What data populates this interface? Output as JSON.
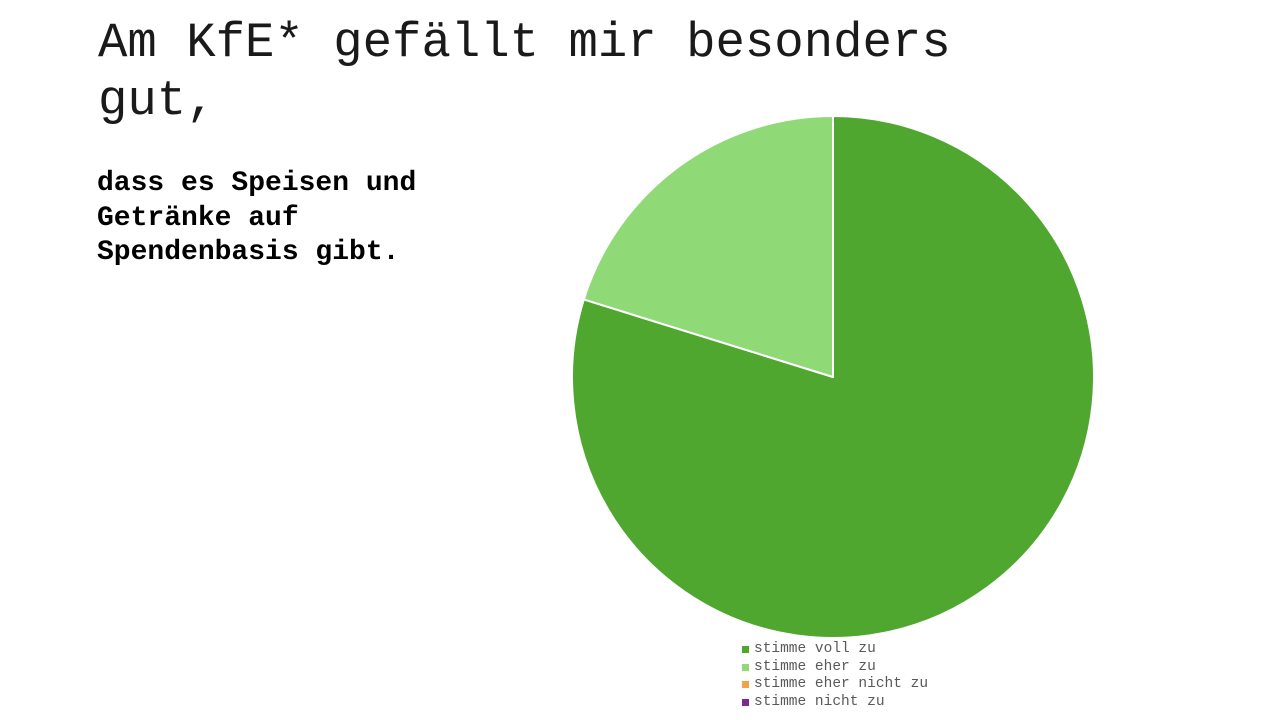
{
  "slide": {
    "title": "Am KfE* gefällt mir besonders gut,",
    "subtitle": "dass es Speisen und Getränke auf Spendenbasis gibt."
  },
  "chart_data": {
    "type": "pie",
    "start_angle_deg": 0,
    "direction": "clockwise",
    "legend_position": "bottom",
    "slices": [
      {
        "label": "stimme voll zu",
        "value": 79.8,
        "color": "#4fa72f"
      },
      {
        "label": "stimme eher zu",
        "value": 20.2,
        "color": "#8fd976"
      },
      {
        "label": "stimme eher nicht zu",
        "value": 0,
        "color": "#f2a34a"
      },
      {
        "label": "stimme nicht zu",
        "value": 0,
        "color": "#7b2b8f"
      }
    ]
  }
}
